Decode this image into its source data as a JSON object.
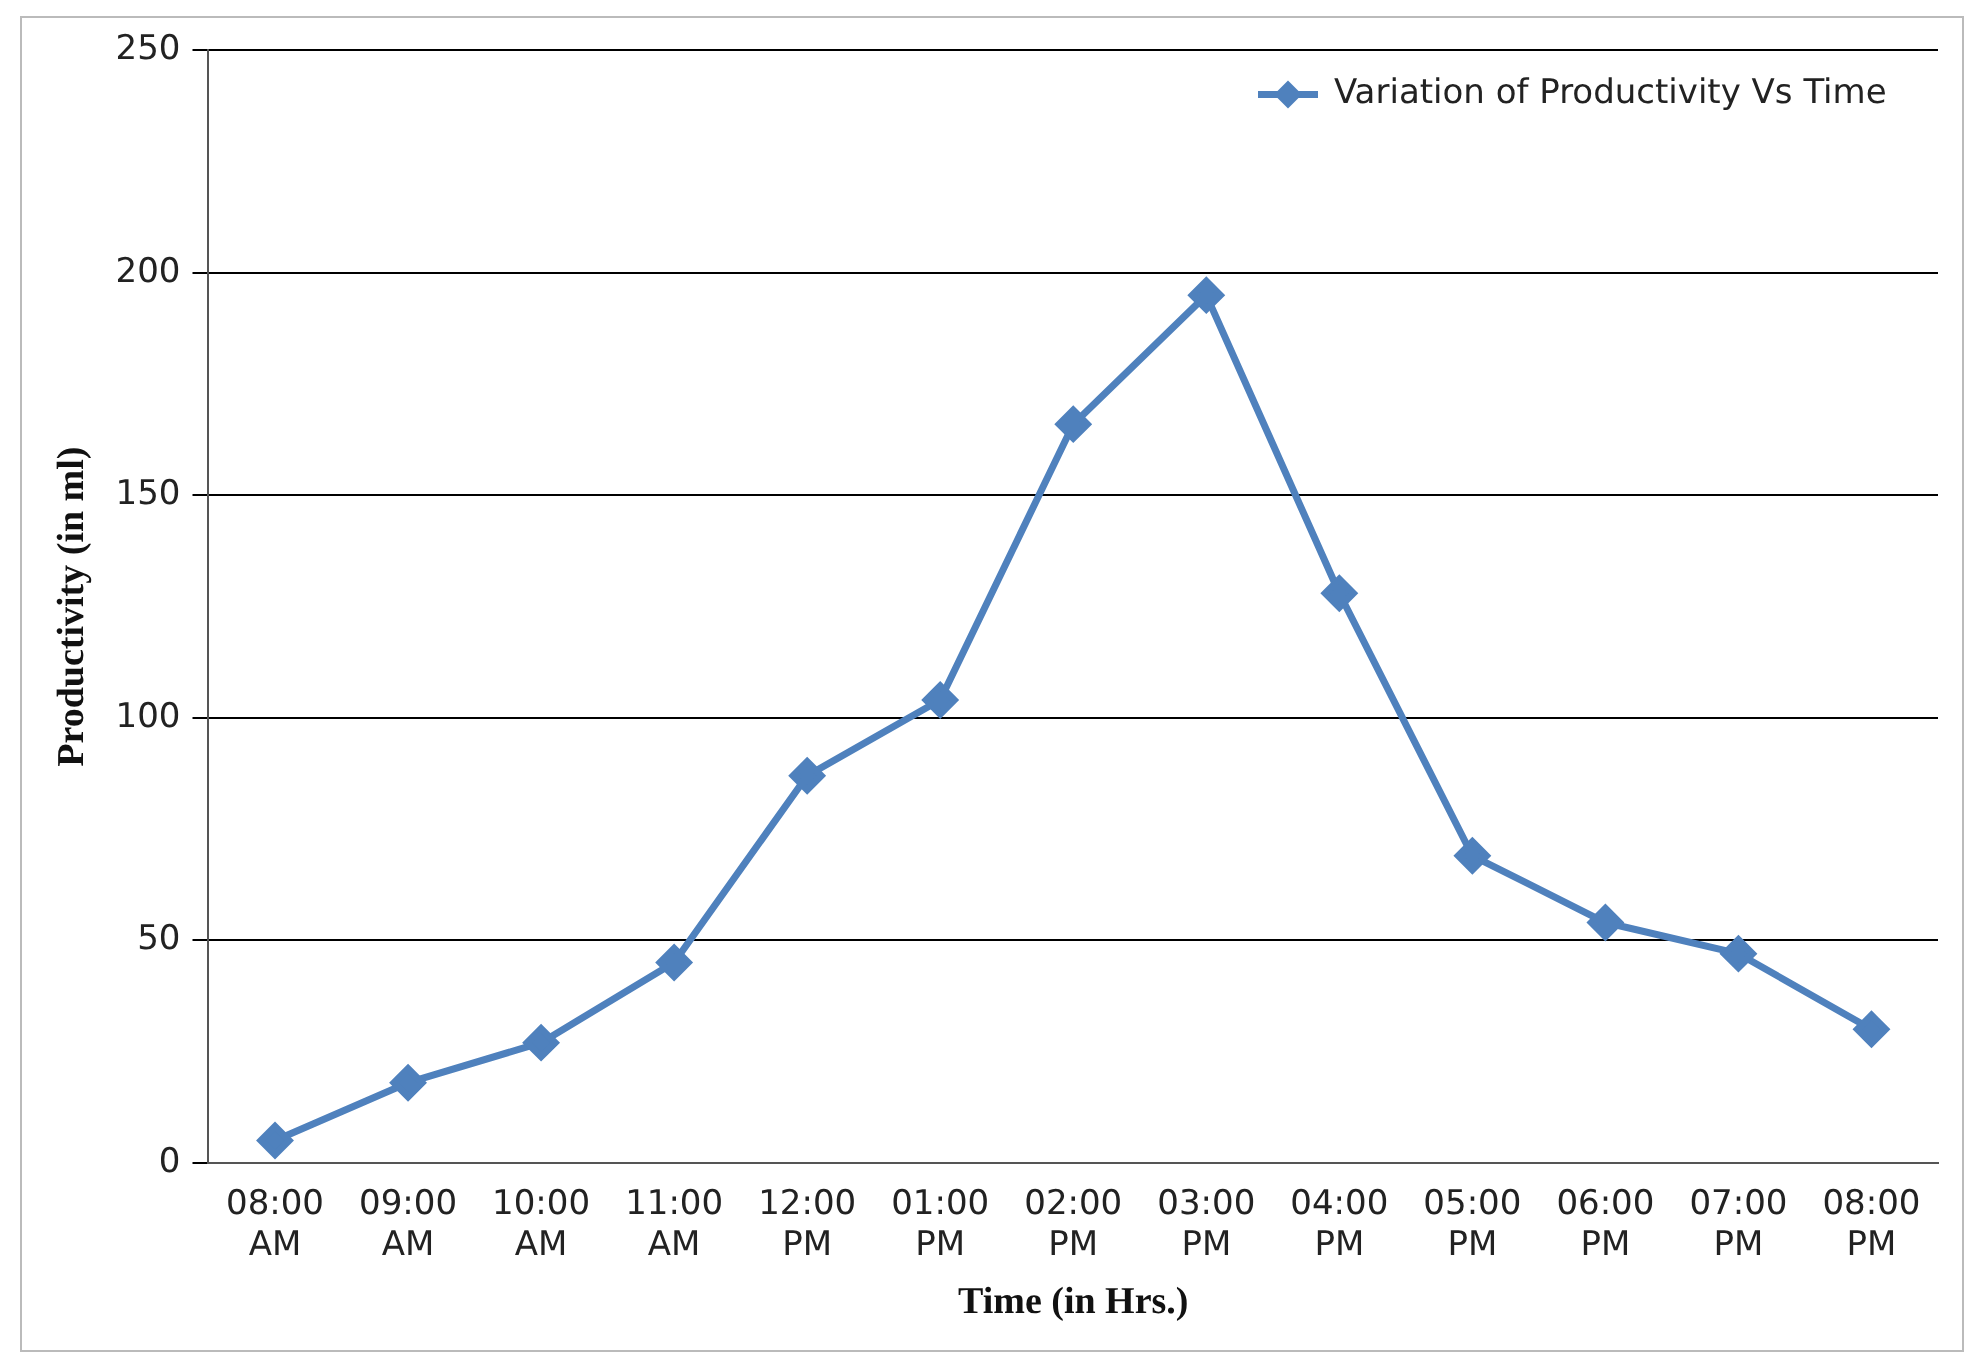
{
  "chart_data": {
    "type": "line",
    "xlabel": "Time (in Hrs.)",
    "ylabel": "Productivity (in ml)",
    "categories": [
      "08:00 AM",
      "09:00 AM",
      "10:00 AM",
      "11:00 AM",
      "12:00 PM",
      "01:00 PM",
      "02:00 PM",
      "03:00 PM",
      "04:00 PM",
      "05:00 PM",
      "06:00 PM",
      "07:00 PM",
      "08:00 PM"
    ],
    "series": [
      {
        "name": "Variation of Productivity Vs Time",
        "color": "#4f81bd",
        "values": [
          5,
          18,
          27,
          45,
          87,
          104,
          166,
          195,
          128,
          69,
          54,
          47,
          30
        ]
      }
    ],
    "ylim": [
      0,
      250
    ],
    "yticks": [
      0,
      50,
      100,
      150,
      200,
      250
    ],
    "grid": "y",
    "legend": "top right",
    "marker": "diamond",
    "line_style": "solid"
  }
}
